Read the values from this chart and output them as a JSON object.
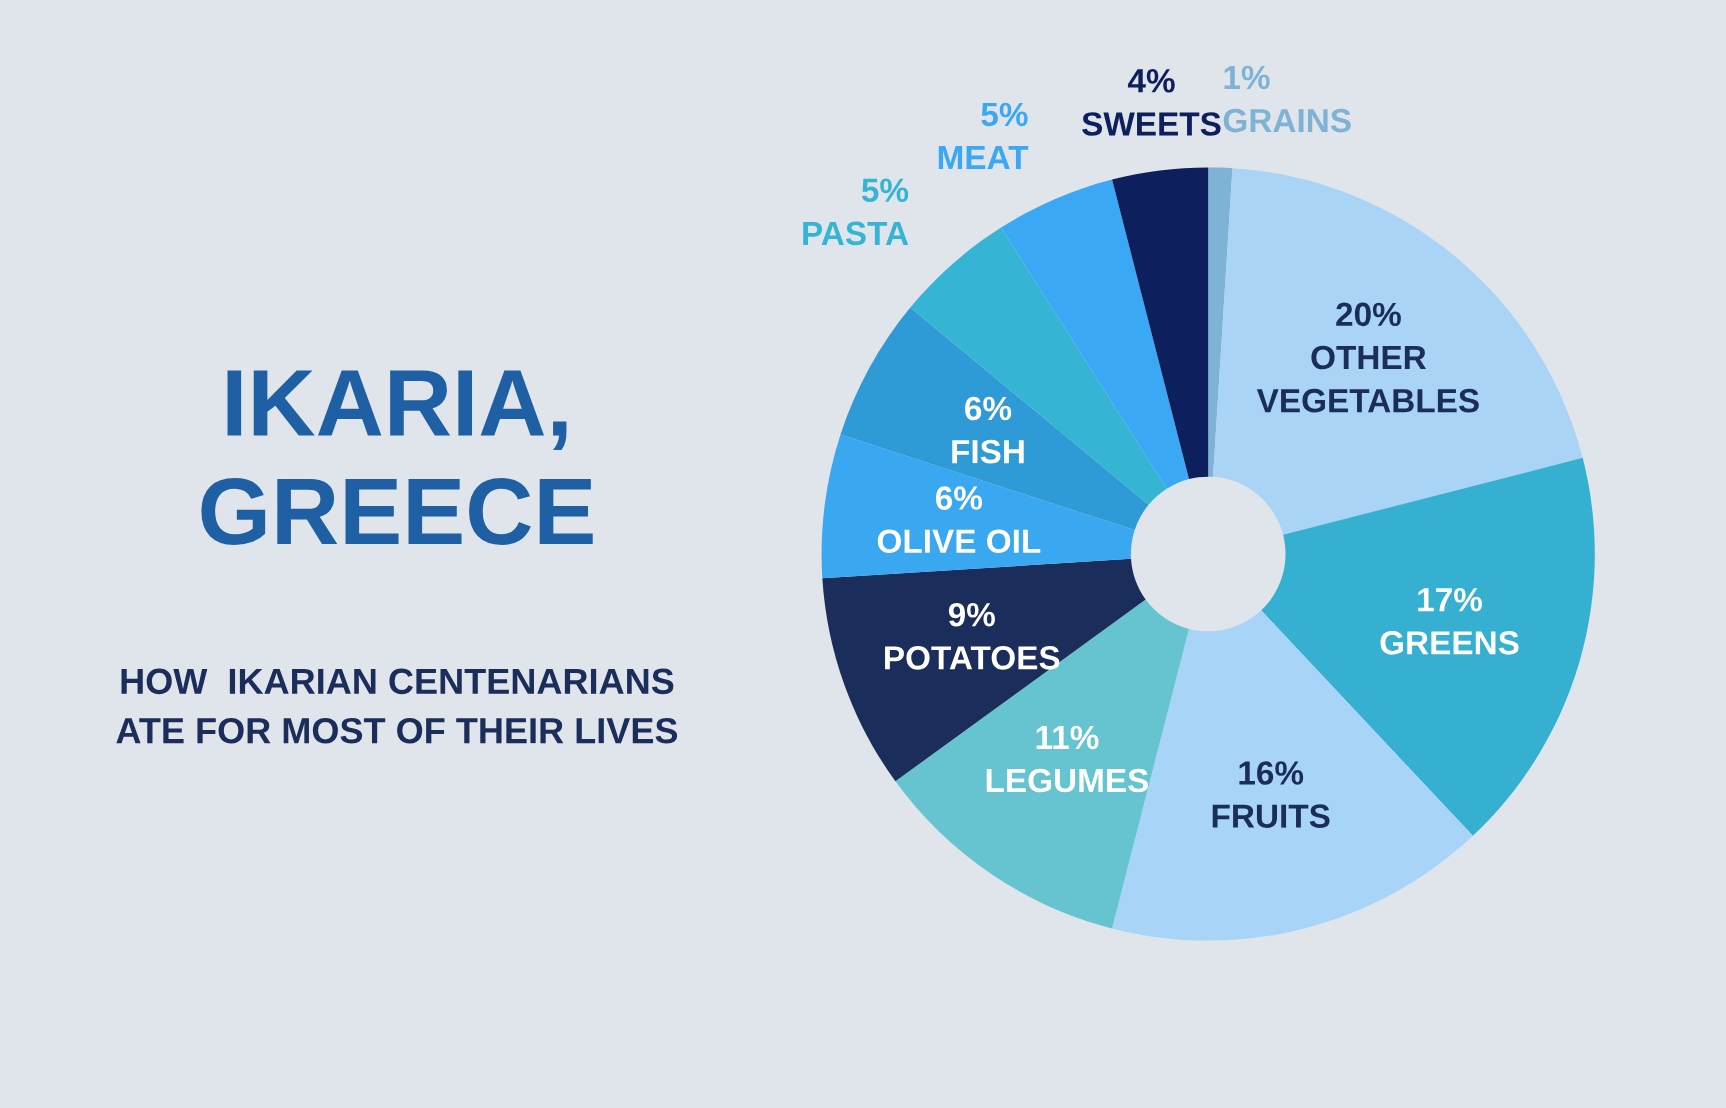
{
  "chart_data": {
    "type": "donut",
    "title": "IKARIA,\nGREECE",
    "subtitle": "HOW  IKARIAN CENTENARIANS\nATE FOR MOST OF THEIR LIVES",
    "categories": [
      "GRAINS",
      "OTHER VEGETABLES",
      "GREENS",
      "FRUITS",
      "LEGUMES",
      "POTATOES",
      "OLIVE OIL",
      "FISH",
      "PASTA",
      "MEAT",
      "SWEETS"
    ],
    "values": [
      1,
      20,
      17,
      16,
      11,
      9,
      6,
      6,
      5,
      5,
      4
    ],
    "colors": [
      "#7fb3d5",
      "#a9d4f5",
      "#35b0d0",
      "#a8d4f7",
      "#66c4d0",
      "#1b2d5b",
      "#3aa8f0",
      "#2e9ad6",
      "#36b4d4",
      "#3aa8f5",
      "#0d1f5c"
    ],
    "value_labels": [
      "1%",
      "20%",
      "17%",
      "16%",
      "11%",
      "9%",
      "6%",
      "6%",
      "5%",
      "5%",
      "4%"
    ],
    "legend": false
  }
}
